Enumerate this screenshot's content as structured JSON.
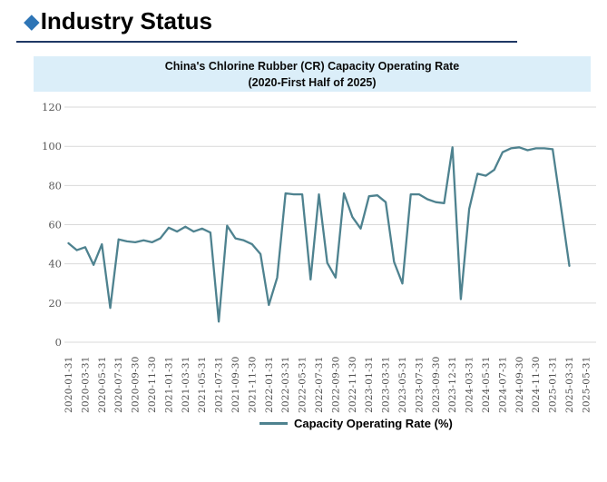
{
  "header": {
    "diamond_icon": "◆",
    "title": "Industry Status"
  },
  "chart": {
    "title_line1": "China's Chlorine Rubber (CR) Capacity Operating Rate",
    "title_line2": "(2020-First Half of 2025)",
    "legend_label": "Capacity Operating Rate (%)",
    "colors": {
      "line": "#4e828f",
      "title_band_bg": "#dbeef9",
      "header_accent": "#2e75b6",
      "header_underline": "#1f3864",
      "gridline": "#d9d9d9",
      "tick_text": "#595959"
    }
  },
  "chart_data": {
    "type": "line",
    "title": "China's Chlorine Rubber (CR) Capacity Operating Rate (2020-First Half of 2025)",
    "xlabel": "",
    "ylabel": "",
    "ylim": [
      0,
      120
    ],
    "ytick_step": 20,
    "grid": true,
    "legend_position": "bottom",
    "xtick_label_every": 2,
    "x": [
      "2020-01-31",
      "2020-02-29",
      "2020-03-31",
      "2020-04-30",
      "2020-05-31",
      "2020-06-30",
      "2020-07-31",
      "2020-08-31",
      "2020-09-30",
      "2020-10-31",
      "2020-11-30",
      "2020-12-31",
      "2021-01-31",
      "2021-02-28",
      "2021-03-31",
      "2021-04-30",
      "2021-05-31",
      "2021-06-30",
      "2021-07-31",
      "2021-08-31",
      "2021-09-30",
      "2021-10-31",
      "2021-11-30",
      "2021-12-31",
      "2022-01-31",
      "2022-02-28",
      "2022-03-31",
      "2022-04-30",
      "2022-05-31",
      "2022-06-30",
      "2022-07-31",
      "2022-08-31",
      "2022-09-30",
      "2022-10-31",
      "2022-11-30",
      "2022-12-31",
      "2023-01-31",
      "2023-02-28",
      "2023-03-31",
      "2023-04-30",
      "2023-05-31",
      "2023-06-30",
      "2023-07-31",
      "2023-08-31",
      "2023-09-30",
      "2023-11-30",
      "2023-12-31",
      "2024-02-29",
      "2024-03-31",
      "2024-04-30",
      "2024-05-31",
      "2024-06-30",
      "2024-07-31",
      "2024-08-31",
      "2024-09-30",
      "2024-10-31",
      "2024-11-30",
      "2024-12-31",
      "2025-01-31",
      "2025-02-28",
      "2025-03-31",
      "2025-04-30",
      "2025-05-31",
      "2025-06-30"
    ],
    "series": [
      {
        "name": "Capacity Operating Rate (%)",
        "values": [
          50.5,
          47,
          48.5,
          39.5,
          50,
          17.5,
          52.5,
          51.5,
          51,
          52,
          51,
          53,
          58.5,
          56.5,
          59,
          56.5,
          58,
          56,
          10.5,
          59.5,
          53,
          52,
          50,
          45,
          19,
          33,
          76,
          75.5,
          75.5,
          32,
          75.5,
          40.5,
          33,
          76,
          64,
          58,
          74.5,
          75,
          71.5,
          41,
          30,
          75.5,
          75.5,
          73,
          71.5,
          71,
          99.5,
          22,
          68,
          86,
          85,
          88,
          97,
          99,
          99.5,
          98,
          99,
          99,
          98.5,
          69,
          39,
          null,
          null,
          null
        ]
      }
    ]
  }
}
